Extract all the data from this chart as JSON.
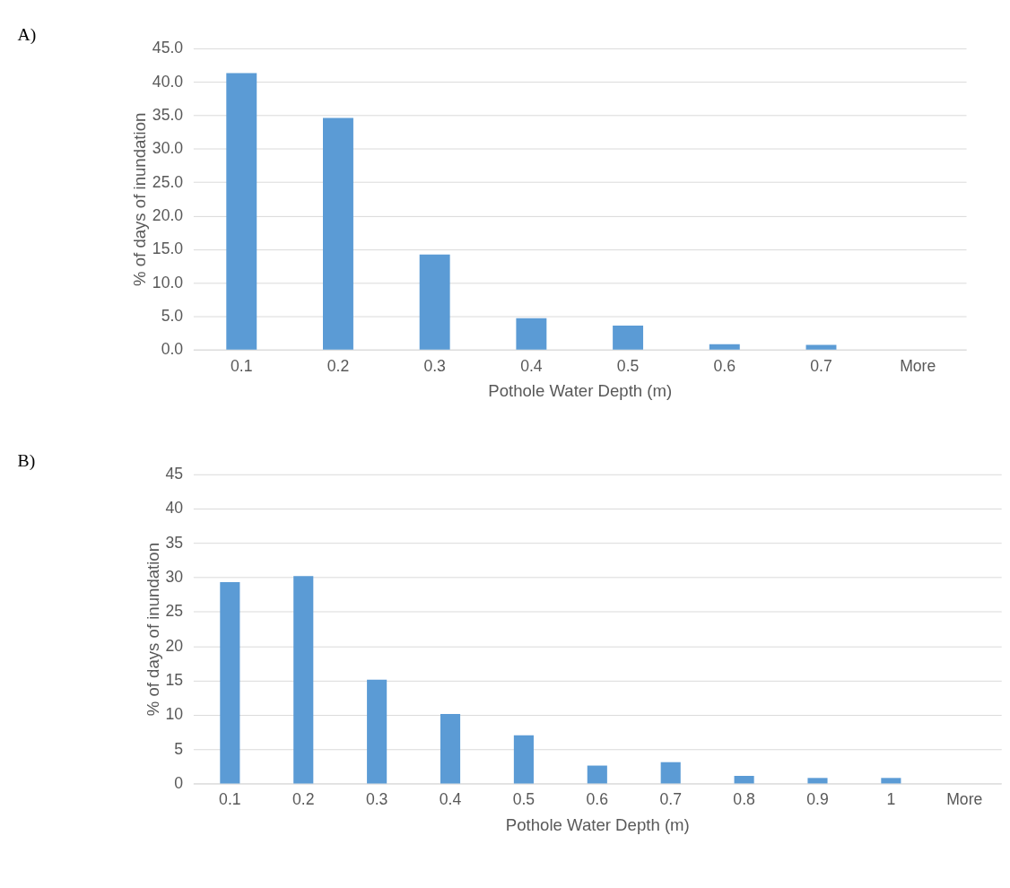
{
  "chart_data": [
    {
      "type": "bar",
      "annotations": [
        "A)"
      ],
      "xlabel": "Pothole Water Depth (m)",
      "ylabel": "% of days of inundation",
      "categories": [
        "0.1",
        "0.2",
        "0.3",
        "0.4",
        "0.5",
        "0.6",
        "0.7",
        "More"
      ],
      "color": "#5b9bd5",
      "values": [
        41.3,
        34.6,
        14.2,
        4.7,
        3.6,
        0.8,
        0.7,
        0
      ],
      "ylim": [
        0,
        45
      ],
      "yticks": [
        {
          "value": 0,
          "label": "0.0"
        },
        {
          "value": 5,
          "label": "5.0"
        },
        {
          "value": 10,
          "label": "10.0"
        },
        {
          "value": 15,
          "label": "15.0"
        },
        {
          "value": 20,
          "label": "20.0"
        },
        {
          "value": 25,
          "label": "25.0"
        },
        {
          "value": 30,
          "label": "30.0"
        },
        {
          "value": 35,
          "label": "35.0"
        },
        {
          "value": 40,
          "label": "40.0"
        },
        {
          "value": 45,
          "label": "45.0"
        }
      ],
      "grid": "y"
    },
    {
      "type": "bar",
      "annotations": [
        "B)"
      ],
      "xlabel": "Pothole Water Depth (m)",
      "ylabel": "% of days of inundation",
      "categories": [
        "0.1",
        "0.2",
        "0.3",
        "0.4",
        "0.5",
        "0.6",
        "0.7",
        "0.8",
        "0.9",
        "1",
        "More"
      ],
      "color": "#5b9bd5",
      "values": [
        29.3,
        30.2,
        15.1,
        10.1,
        7.0,
        2.6,
        3.1,
        1.1,
        0.8,
        0.8,
        0
      ],
      "ylim": [
        0,
        45
      ],
      "yticks": [
        0,
        5,
        10,
        15,
        20,
        25,
        30,
        35,
        40,
        45
      ],
      "grid": "y"
    }
  ]
}
